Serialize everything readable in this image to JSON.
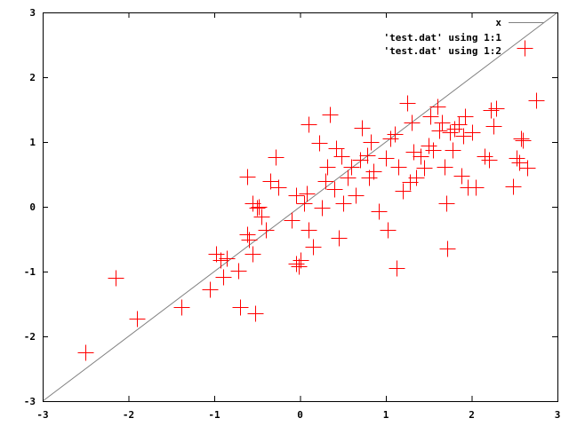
{
  "chart_data": {
    "type": "scatter",
    "xlim": [
      -3,
      3
    ],
    "ylim": [
      -3,
      3
    ],
    "x_ticks": [
      "-3",
      "-2",
      "-1",
      "0",
      "1",
      "2",
      "3"
    ],
    "y_ticks": [
      "-3",
      "-2",
      "-1",
      "0",
      "1",
      "2",
      "3"
    ],
    "grid": false,
    "legend_position": "top-right",
    "series": [
      {
        "name": "x",
        "kind": "line",
        "color": "#808080",
        "x": [
          -3,
          3
        ],
        "y": [
          -3,
          3
        ]
      },
      {
        "name": "'test.dat' using 1:1",
        "kind": "line",
        "color": "#ff0000",
        "x": [],
        "y": []
      },
      {
        "name": "'test.dat' using 1:2",
        "kind": "points",
        "marker": "plus",
        "color": "#ff0000",
        "points": [
          [
            -2.5,
            -2.25
          ],
          [
            -2.15,
            -1.1
          ],
          [
            -1.9,
            -1.72
          ],
          [
            -1.38,
            -1.55
          ],
          [
            -1.05,
            -1.27
          ],
          [
            -0.98,
            -0.72
          ],
          [
            -0.93,
            -0.82
          ],
          [
            -0.9,
            -1.08
          ],
          [
            -0.85,
            -0.8
          ],
          [
            -0.72,
            -0.98
          ],
          [
            -0.7,
            -1.55
          ],
          [
            -0.62,
            -0.42
          ],
          [
            -0.55,
            -0.72
          ],
          [
            -0.52,
            -1.65
          ],
          [
            -0.6,
            -0.5
          ],
          [
            -0.62,
            0.47
          ],
          [
            -0.55,
            0.05
          ],
          [
            -0.5,
            -0.02
          ],
          [
            -0.48,
            0.0
          ],
          [
            -0.45,
            -0.15
          ],
          [
            -0.4,
            -0.35
          ],
          [
            -0.35,
            0.4
          ],
          [
            -0.28,
            0.77
          ],
          [
            -0.25,
            0.3
          ],
          [
            -0.1,
            -0.2
          ],
          [
            -0.05,
            0.18
          ],
          [
            -0.05,
            -0.88
          ],
          [
            -0.02,
            -0.92
          ],
          [
            0.0,
            -0.82
          ],
          [
            0.05,
            0.05
          ],
          [
            0.08,
            0.2
          ],
          [
            0.1,
            -0.35
          ],
          [
            0.1,
            1.28
          ],
          [
            0.15,
            -0.62
          ],
          [
            0.22,
            0.98
          ],
          [
            0.25,
            -0.02
          ],
          [
            0.3,
            0.4
          ],
          [
            0.35,
            1.42
          ],
          [
            0.32,
            0.62
          ],
          [
            0.4,
            0.28
          ],
          [
            0.42,
            0.9
          ],
          [
            0.45,
            -0.48
          ],
          [
            0.48,
            0.78
          ],
          [
            0.5,
            0.05
          ],
          [
            0.55,
            0.45
          ],
          [
            0.6,
            0.62
          ],
          [
            0.65,
            0.18
          ],
          [
            0.7,
            0.72
          ],
          [
            0.72,
            1.22
          ],
          [
            0.78,
            0.8
          ],
          [
            0.8,
            0.45
          ],
          [
            0.82,
            1.0
          ],
          [
            0.85,
            0.55
          ],
          [
            0.92,
            -0.07
          ],
          [
            1.0,
            0.75
          ],
          [
            1.02,
            -0.35
          ],
          [
            1.05,
            1.05
          ],
          [
            1.1,
            1.12
          ],
          [
            1.12,
            -0.95
          ],
          [
            1.15,
            0.62
          ],
          [
            1.2,
            0.25
          ],
          [
            1.25,
            1.6
          ],
          [
            1.28,
            0.38
          ],
          [
            1.3,
            1.3
          ],
          [
            1.32,
            0.85
          ],
          [
            1.35,
            0.45
          ],
          [
            1.4,
            0.78
          ],
          [
            1.45,
            0.6
          ],
          [
            1.5,
            0.95
          ],
          [
            1.52,
            1.4
          ],
          [
            1.55,
            0.88
          ],
          [
            1.6,
            1.55
          ],
          [
            1.62,
            1.18
          ],
          [
            1.65,
            1.3
          ],
          [
            1.68,
            0.62
          ],
          [
            1.7,
            0.05
          ],
          [
            1.72,
            -0.65
          ],
          [
            1.75,
            1.15
          ],
          [
            1.78,
            0.88
          ],
          [
            1.8,
            1.2
          ],
          [
            1.85,
            1.28
          ],
          [
            1.88,
            0.48
          ],
          [
            1.9,
            1.1
          ],
          [
            1.92,
            1.4
          ],
          [
            1.95,
            0.3
          ],
          [
            2.0,
            1.15
          ],
          [
            2.05,
            0.3
          ],
          [
            2.15,
            0.78
          ],
          [
            2.2,
            0.72
          ],
          [
            2.22,
            1.5
          ],
          [
            2.25,
            1.25
          ],
          [
            2.28,
            1.52
          ],
          [
            2.48,
            0.32
          ],
          [
            2.52,
            0.75
          ],
          [
            2.55,
            0.68
          ],
          [
            2.58,
            1.05
          ],
          [
            2.6,
            1.03
          ],
          [
            2.62,
            2.45
          ],
          [
            2.65,
            0.6
          ],
          [
            2.75,
            1.65
          ]
        ]
      }
    ]
  }
}
